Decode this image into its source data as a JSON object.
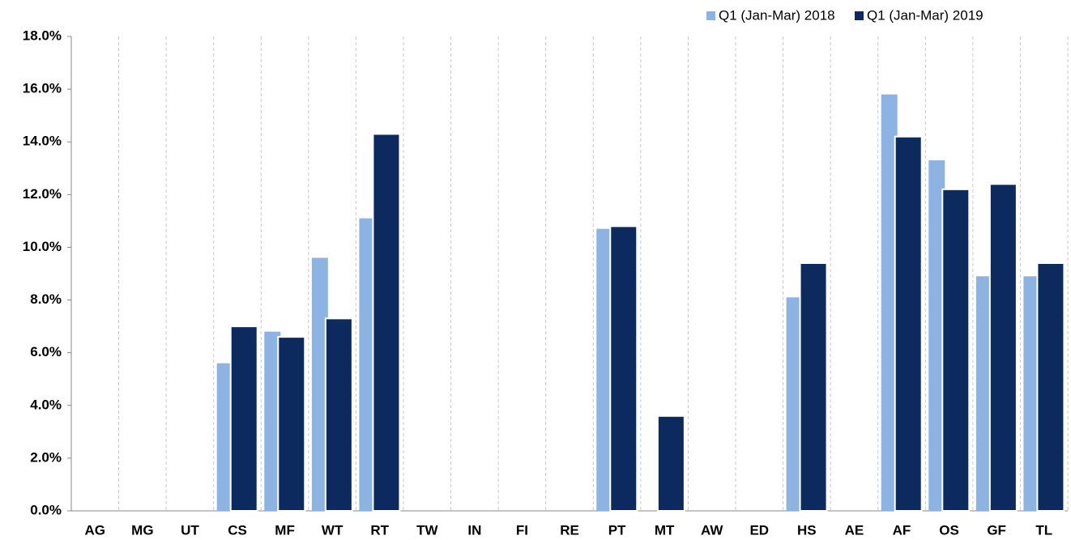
{
  "chart_data": {
    "type": "bar",
    "categories": [
      "AG",
      "MG",
      "UT",
      "CS",
      "MF",
      "WT",
      "RT",
      "TW",
      "IN",
      "FI",
      "RE",
      "PT",
      "MT",
      "AW",
      "ED",
      "HS",
      "AE",
      "AF",
      "OS",
      "GF",
      "TL"
    ],
    "series": [
      {
        "name": "Q1 (Jan-Mar) 2018",
        "color": "#8db3e2",
        "values": [
          null,
          null,
          null,
          5.6,
          6.8,
          9.6,
          11.1,
          null,
          null,
          null,
          null,
          10.7,
          null,
          null,
          null,
          8.1,
          null,
          15.8,
          13.3,
          8.9,
          8.9
        ]
      },
      {
        "name": "Q1 (Jan-Mar) 2019",
        "color": "#0c2a5e",
        "values": [
          null,
          null,
          null,
          7.0,
          6.6,
          7.3,
          14.3,
          null,
          null,
          null,
          null,
          10.8,
          3.6,
          null,
          null,
          9.4,
          null,
          14.2,
          12.2,
          12.4,
          9.4
        ]
      }
    ],
    "ylim": [
      0,
      18
    ],
    "yticks": [
      {
        "value": 0,
        "label": "0.0%"
      },
      {
        "value": 2,
        "label": "2.0%"
      },
      {
        "value": 4,
        "label": "4.0%"
      },
      {
        "value": 6,
        "label": "6.0%"
      },
      {
        "value": 8,
        "label": "8.0%"
      },
      {
        "value": 10,
        "label": "10.0%"
      },
      {
        "value": 12,
        "label": "12.0%"
      },
      {
        "value": 14,
        "label": "14.0%"
      },
      {
        "value": 16,
        "label": "16.0%"
      },
      {
        "value": 18,
        "label": "18.0%"
      }
    ],
    "grid": true,
    "legend": "top-right"
  }
}
